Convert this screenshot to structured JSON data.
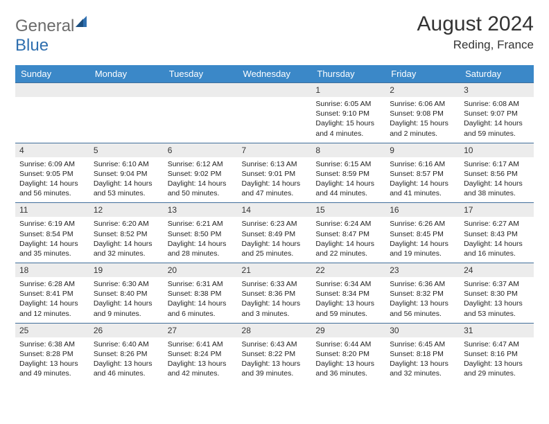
{
  "brand": {
    "part1": "General",
    "part2": "Blue"
  },
  "title": "August 2024",
  "location": "Reding, France",
  "weekdays": [
    "Sunday",
    "Monday",
    "Tuesday",
    "Wednesday",
    "Thursday",
    "Friday",
    "Saturday"
  ],
  "colors": {
    "header_bg": "#3b88c8",
    "header_text": "#ffffff",
    "daynum_bg": "#ececec",
    "rule": "#3f6d9a",
    "logo_gray": "#6b6b6b",
    "logo_blue": "#2f6faf"
  },
  "weeks": [
    [
      null,
      null,
      null,
      null,
      {
        "n": "1",
        "sr": "6:05 AM",
        "ss": "9:10 PM",
        "dl": "15 hours and 4 minutes."
      },
      {
        "n": "2",
        "sr": "6:06 AM",
        "ss": "9:08 PM",
        "dl": "15 hours and 2 minutes."
      },
      {
        "n": "3",
        "sr": "6:08 AM",
        "ss": "9:07 PM",
        "dl": "14 hours and 59 minutes."
      }
    ],
    [
      {
        "n": "4",
        "sr": "6:09 AM",
        "ss": "9:05 PM",
        "dl": "14 hours and 56 minutes."
      },
      {
        "n": "5",
        "sr": "6:10 AM",
        "ss": "9:04 PM",
        "dl": "14 hours and 53 minutes."
      },
      {
        "n": "6",
        "sr": "6:12 AM",
        "ss": "9:02 PM",
        "dl": "14 hours and 50 minutes."
      },
      {
        "n": "7",
        "sr": "6:13 AM",
        "ss": "9:01 PM",
        "dl": "14 hours and 47 minutes."
      },
      {
        "n": "8",
        "sr": "6:15 AM",
        "ss": "8:59 PM",
        "dl": "14 hours and 44 minutes."
      },
      {
        "n": "9",
        "sr": "6:16 AM",
        "ss": "8:57 PM",
        "dl": "14 hours and 41 minutes."
      },
      {
        "n": "10",
        "sr": "6:17 AM",
        "ss": "8:56 PM",
        "dl": "14 hours and 38 minutes."
      }
    ],
    [
      {
        "n": "11",
        "sr": "6:19 AM",
        "ss": "8:54 PM",
        "dl": "14 hours and 35 minutes."
      },
      {
        "n": "12",
        "sr": "6:20 AM",
        "ss": "8:52 PM",
        "dl": "14 hours and 32 minutes."
      },
      {
        "n": "13",
        "sr": "6:21 AM",
        "ss": "8:50 PM",
        "dl": "14 hours and 28 minutes."
      },
      {
        "n": "14",
        "sr": "6:23 AM",
        "ss": "8:49 PM",
        "dl": "14 hours and 25 minutes."
      },
      {
        "n": "15",
        "sr": "6:24 AM",
        "ss": "8:47 PM",
        "dl": "14 hours and 22 minutes."
      },
      {
        "n": "16",
        "sr": "6:26 AM",
        "ss": "8:45 PM",
        "dl": "14 hours and 19 minutes."
      },
      {
        "n": "17",
        "sr": "6:27 AM",
        "ss": "8:43 PM",
        "dl": "14 hours and 16 minutes."
      }
    ],
    [
      {
        "n": "18",
        "sr": "6:28 AM",
        "ss": "8:41 PM",
        "dl": "14 hours and 12 minutes."
      },
      {
        "n": "19",
        "sr": "6:30 AM",
        "ss": "8:40 PM",
        "dl": "14 hours and 9 minutes."
      },
      {
        "n": "20",
        "sr": "6:31 AM",
        "ss": "8:38 PM",
        "dl": "14 hours and 6 minutes."
      },
      {
        "n": "21",
        "sr": "6:33 AM",
        "ss": "8:36 PM",
        "dl": "14 hours and 3 minutes."
      },
      {
        "n": "22",
        "sr": "6:34 AM",
        "ss": "8:34 PM",
        "dl": "13 hours and 59 minutes."
      },
      {
        "n": "23",
        "sr": "6:36 AM",
        "ss": "8:32 PM",
        "dl": "13 hours and 56 minutes."
      },
      {
        "n": "24",
        "sr": "6:37 AM",
        "ss": "8:30 PM",
        "dl": "13 hours and 53 minutes."
      }
    ],
    [
      {
        "n": "25",
        "sr": "6:38 AM",
        "ss": "8:28 PM",
        "dl": "13 hours and 49 minutes."
      },
      {
        "n": "26",
        "sr": "6:40 AM",
        "ss": "8:26 PM",
        "dl": "13 hours and 46 minutes."
      },
      {
        "n": "27",
        "sr": "6:41 AM",
        "ss": "8:24 PM",
        "dl": "13 hours and 42 minutes."
      },
      {
        "n": "28",
        "sr": "6:43 AM",
        "ss": "8:22 PM",
        "dl": "13 hours and 39 minutes."
      },
      {
        "n": "29",
        "sr": "6:44 AM",
        "ss": "8:20 PM",
        "dl": "13 hours and 36 minutes."
      },
      {
        "n": "30",
        "sr": "6:45 AM",
        "ss": "8:18 PM",
        "dl": "13 hours and 32 minutes."
      },
      {
        "n": "31",
        "sr": "6:47 AM",
        "ss": "8:16 PM",
        "dl": "13 hours and 29 minutes."
      }
    ]
  ],
  "labels": {
    "sunrise": "Sunrise: ",
    "sunset": "Sunset: ",
    "daylight": "Daylight: "
  }
}
